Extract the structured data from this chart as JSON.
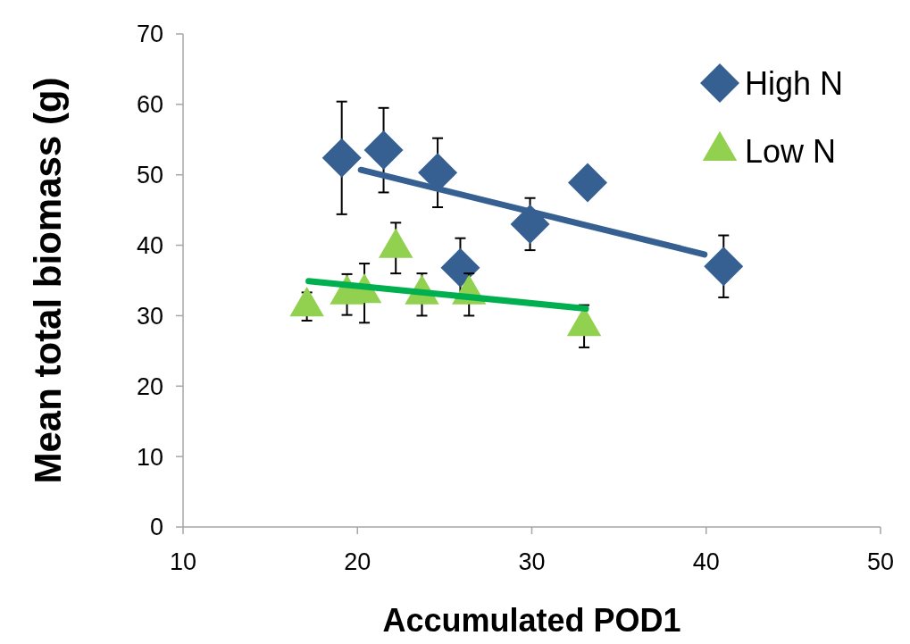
{
  "chart_data": {
    "type": "scatter",
    "xlabel": "Accumulated POD1",
    "ylabel": "Mean total biomass (g)",
    "xlim": [
      10,
      50
    ],
    "xticks": [
      10,
      20,
      30,
      40,
      50
    ],
    "ylim": [
      0,
      70
    ],
    "yticks": [
      0,
      10,
      20,
      30,
      40,
      50,
      60,
      70
    ],
    "legend": "top right",
    "grid": false,
    "series": [
      {
        "name": "High N",
        "color": "#376092",
        "marker": "diamond",
        "x": [
          19.1,
          21.5,
          24.6,
          25.9,
          29.9,
          33.2,
          41.0
        ],
        "values": [
          52.4,
          53.5,
          50.3,
          36.8,
          43.0,
          48.9,
          37.0
        ],
        "errors": [
          8,
          6,
          4.9,
          4.2,
          3.7,
          null,
          4.4
        ]
      },
      {
        "name": "Low N",
        "color": "#92d050",
        "marker": "triangle",
        "x": [
          17.1,
          19.4,
          20.4,
          22.2,
          23.7,
          26.4,
          33.0
        ],
        "values": [
          31.3,
          33.0,
          33.2,
          39.6,
          33.0,
          33.0,
          28.5
        ],
        "errors": [
          2,
          2.9,
          4.2,
          3.6,
          3.0,
          3.0,
          3.0
        ]
      },
      {
        "type": "line",
        "color": "#376092",
        "x": [
          20.2,
          39.9
        ],
        "values": [
          50.7,
          38.7
        ]
      },
      {
        "type": "line",
        "color": "#00b050",
        "x": [
          17.2,
          33.1
        ],
        "values": [
          34.9,
          31.0
        ]
      }
    ]
  }
}
